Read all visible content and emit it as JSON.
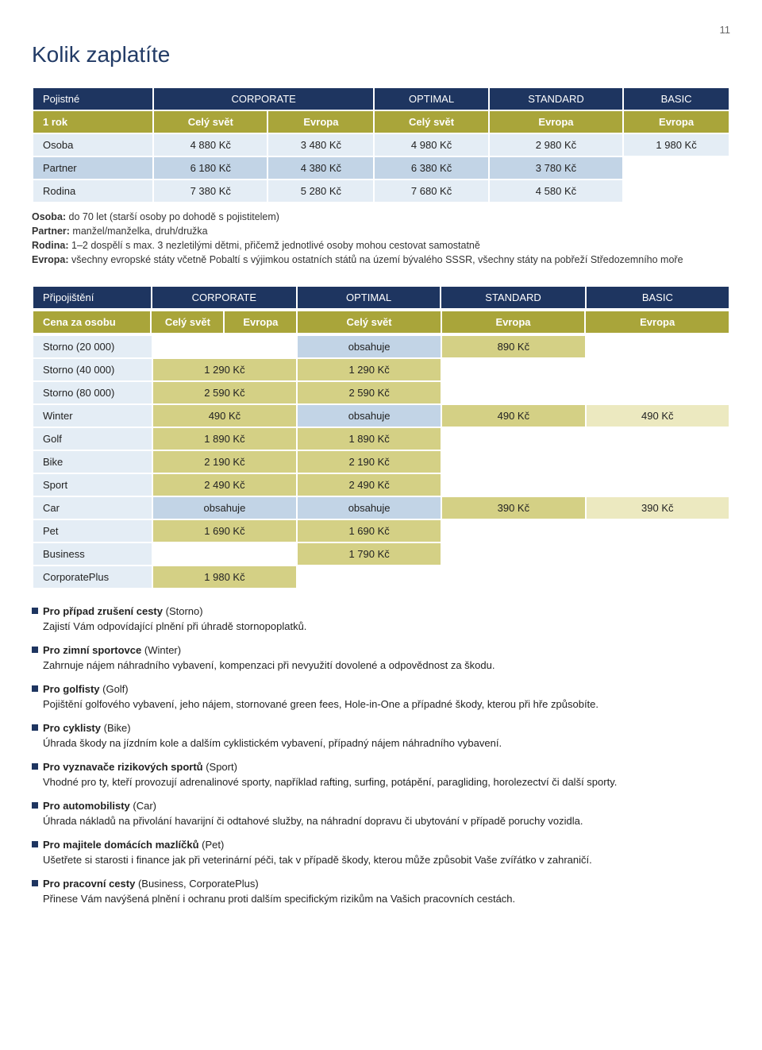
{
  "page_number": "11",
  "title": "Kolik zaplatíte",
  "colors": {
    "navy": "#1e3560",
    "olive_header": "#a9a53a",
    "cell_blue": "#c2d4e6",
    "cell_olive": "#d4d085",
    "cell_khaki": "#ece9c0",
    "cell_lightblue": "#e4edf5"
  },
  "table1": {
    "header1": [
      "Pojistné",
      "CORPORATE",
      "OPTIMAL",
      "STANDARD",
      "BASIC"
    ],
    "header2": [
      "1 rok",
      "Celý svět",
      "Evropa",
      "Celý svět",
      "Evropa",
      "Evropa"
    ],
    "rows": [
      {
        "label": "Osoba",
        "cells": [
          "4 880 Kč",
          "3 480 Kč",
          "4 980 Kč",
          "2 980 Kč",
          "1 980 Kč"
        ]
      },
      {
        "label": "Partner",
        "cells": [
          "6 180 Kč",
          "4 380 Kč",
          "6 380 Kč",
          "3 780 Kč",
          ""
        ]
      },
      {
        "label": "Rodina",
        "cells": [
          "7 380 Kč",
          "5 280 Kč",
          "7 680 Kč",
          "4 580 Kč",
          ""
        ]
      }
    ]
  },
  "notes": [
    {
      "bold": "Osoba:",
      "text": " do 70 let (starší osoby po dohodě s pojistitelem)"
    },
    {
      "bold": "Partner:",
      "text": " manžel/manželka, druh/družka"
    },
    {
      "bold": "Rodina:",
      "text": " 1–2 dospělí s max. 3 nezletilými dětmi, přičemž jednotlivé osoby mohou cestovat samostatně"
    },
    {
      "bold": "Evropa:",
      "text": " všechny evropské státy včetně Pobaltí s výjimkou ostatních států na území bývalého SSSR, všechny státy na pobřeží Středozemního moře"
    }
  ],
  "table2": {
    "header1": [
      "Připojištění",
      "CORPORATE",
      "OPTIMAL",
      "STANDARD",
      "BASIC"
    ],
    "header2": [
      "Cena za osobu",
      "Celý svět",
      "Evropa",
      "Celý svět",
      "Evropa",
      "Evropa"
    ],
    "rows": [
      {
        "label": "Storno (20 000)",
        "cells": [
          {
            "text": "",
            "cls": "cell-empty"
          },
          {
            "text": "obsahuje",
            "cls": "cell-blue"
          },
          {
            "text": "890 Kč",
            "cls": "cell-olive"
          },
          {
            "text": "",
            "cls": "cell-empty"
          }
        ]
      },
      {
        "label": "Storno (40 000)",
        "cells": [
          {
            "text": "1 290 Kč",
            "cls": "cell-olive"
          },
          {
            "text": "1 290 Kč",
            "cls": "cell-olive"
          },
          {
            "text": "",
            "cls": "cell-empty"
          },
          {
            "text": "",
            "cls": "cell-empty"
          }
        ]
      },
      {
        "label": "Storno (80 000)",
        "cells": [
          {
            "text": "2 590 Kč",
            "cls": "cell-olive"
          },
          {
            "text": "2 590 Kč",
            "cls": "cell-olive"
          },
          {
            "text": "",
            "cls": "cell-empty"
          },
          {
            "text": "",
            "cls": "cell-empty"
          }
        ]
      },
      {
        "label": "Winter",
        "cls": "cell-blue",
        "cells": [
          {
            "text": "490 Kč",
            "cls": "cell-olive"
          },
          {
            "text": "obsahuje",
            "cls": "cell-blue"
          },
          {
            "text": "490 Kč",
            "cls": "cell-olive"
          },
          {
            "text": "490 Kč",
            "cls": "cell-khaki"
          }
        ]
      },
      {
        "label": "Golf",
        "cells": [
          {
            "text": "1 890 Kč",
            "cls": "cell-olive"
          },
          {
            "text": "1 890 Kč",
            "cls": "cell-olive"
          },
          {
            "text": "",
            "cls": "cell-empty"
          },
          {
            "text": "",
            "cls": "cell-empty"
          }
        ]
      },
      {
        "label": "Bike",
        "cells": [
          {
            "text": "2 190 Kč",
            "cls": "cell-olive"
          },
          {
            "text": "2 190 Kč",
            "cls": "cell-olive"
          },
          {
            "text": "",
            "cls": "cell-empty"
          },
          {
            "text": "",
            "cls": "cell-empty"
          }
        ]
      },
      {
        "label": "Sport",
        "cells": [
          {
            "text": "2 490 Kč",
            "cls": "cell-olive"
          },
          {
            "text": "2 490 Kč",
            "cls": "cell-olive"
          },
          {
            "text": "",
            "cls": "cell-empty"
          },
          {
            "text": "",
            "cls": "cell-empty"
          }
        ]
      },
      {
        "label": "Car",
        "cls": "cell-blue",
        "cells": [
          {
            "text": "obsahuje",
            "cls": "cell-blue"
          },
          {
            "text": "obsahuje",
            "cls": "cell-blue"
          },
          {
            "text": "390 Kč",
            "cls": "cell-olive"
          },
          {
            "text": "390 Kč",
            "cls": "cell-khaki"
          }
        ]
      },
      {
        "label": "Pet",
        "cells": [
          {
            "text": "1 690 Kč",
            "cls": "cell-olive"
          },
          {
            "text": "1 690 Kč",
            "cls": "cell-olive"
          },
          {
            "text": "",
            "cls": "cell-empty"
          },
          {
            "text": "",
            "cls": "cell-empty"
          }
        ]
      },
      {
        "label": "Business",
        "cells": [
          {
            "text": "",
            "cls": "cell-empty"
          },
          {
            "text": "1 790 Kč",
            "cls": "cell-olive"
          },
          {
            "text": "",
            "cls": "cell-empty"
          },
          {
            "text": "",
            "cls": "cell-empty"
          }
        ]
      },
      {
        "label": "CorporatePlus",
        "cells": [
          {
            "text": "1 980 Kč",
            "cls": "cell-olive"
          },
          {
            "text": "",
            "cls": "cell-empty"
          },
          {
            "text": "",
            "cls": "cell-empty"
          },
          {
            "text": "",
            "cls": "cell-empty"
          }
        ]
      }
    ]
  },
  "bullets": [
    {
      "title": "Pro případ zrušení cesty",
      "paren": "(Storno)",
      "desc": "Zajistí Vám odpovídající plnění při úhradě stornopoplatků."
    },
    {
      "title": "Pro zimní sportovce",
      "paren": "(Winter)",
      "desc": "Zahrnuje nájem náhradního vybavení, kompenzaci při nevyužití dovolené a odpovědnost za škodu."
    },
    {
      "title": "Pro golfisty",
      "paren": "(Golf)",
      "desc": "Pojištění golfového vybavení, jeho nájem, stornované green fees, Hole-in-One a případné škody, kterou při hře způsobíte."
    },
    {
      "title": "Pro cyklisty",
      "paren": "(Bike)",
      "desc": "Úhrada škody na jízdním kole a dalším cyklistickém vybavení, případný nájem náhradního vybavení."
    },
    {
      "title": "Pro vyznavače rizikových sportů",
      "paren": "(Sport)",
      "desc": "Vhodné pro ty, kteří provozují adrenalinové sporty, například rafting, surfing, potápění, paragliding, horolezectví či další sporty."
    },
    {
      "title": "Pro automobilisty",
      "paren": "(Car)",
      "desc": "Úhrada nákladů na přivolání havarijní či odtahové služby, na náhradní dopravu či ubytování v případě poruchy vozidla."
    },
    {
      "title": "Pro majitele domácích mazlíčků",
      "paren": "(Pet)",
      "desc": "Ušetřete si starosti i finance jak při veterinární péči, tak v případě škody, kterou může způsobit Vaše zvířátko v zahraničí."
    },
    {
      "title": "Pro pracovní cesty",
      "paren": "(Business, CorporatePlus)",
      "desc": "Přinese Vám navýšená plnění i ochranu proti dalším specifickým rizikům na Vašich pracovních cestách."
    }
  ]
}
